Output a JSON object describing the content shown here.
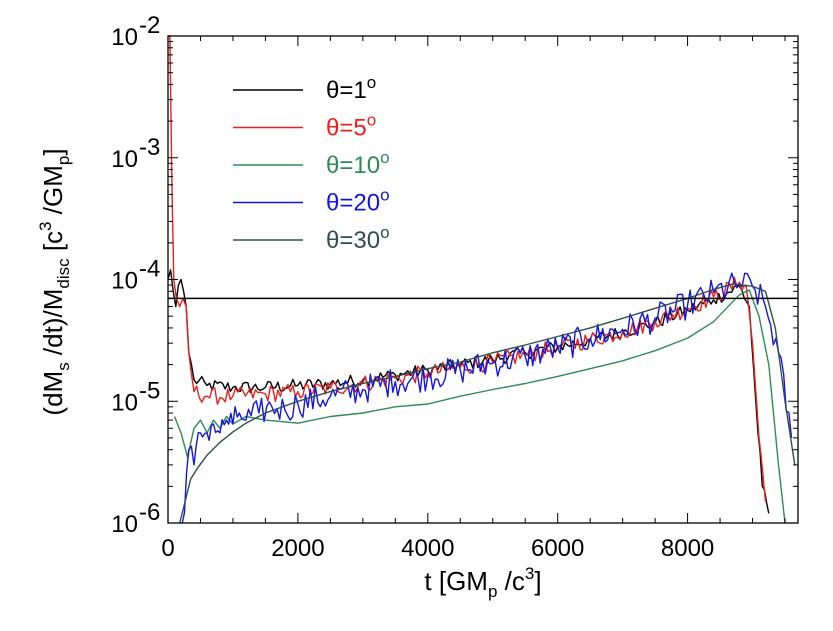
{
  "chart_data": {
    "type": "line",
    "xlabel": {
      "pre": "t [GM",
      "sub": "p",
      "mid": " /c",
      "sup": "3",
      "post": "]"
    },
    "ylabel": {
      "p1": "(dM",
      "s1": "s",
      "p2": " /dt)/M",
      "s2": "disc",
      "p3": " [c",
      "e3": "3",
      "p4": " /GM",
      "s4": "p",
      "p5": "]"
    },
    "xlim": [
      0,
      9700
    ],
    "ylim": [
      1e-06,
      0.01
    ],
    "yscale": "log",
    "xticks": [
      0,
      2000,
      4000,
      6000,
      8000
    ],
    "xtick_labels": [
      "0",
      "2000",
      "4000",
      "6000",
      "8000"
    ],
    "yticks": [
      {
        "base": "10",
        "exp": "-6",
        "value": 1e-06
      },
      {
        "base": "10",
        "exp": "-5",
        "value": 1e-05
      },
      {
        "base": "10",
        "exp": "-4",
        "value": 0.0001
      },
      {
        "base": "10",
        "exp": "-3",
        "value": 0.001
      },
      {
        "base": "10",
        "exp": "-2",
        "value": 0.01
      }
    ],
    "reference_line": {
      "value": 7e-05,
      "color": "#000000"
    },
    "legend": {
      "position": "top-left"
    },
    "series": [
      {
        "name": "θ=1",
        "sup": "o",
        "color": "#000000",
        "x": [
          0,
          40,
          80,
          120,
          160,
          200,
          240,
          280,
          320,
          400,
          600,
          1000,
          1500,
          2000,
          2500,
          3000,
          3500,
          4000,
          4500,
          5000,
          5500,
          6000,
          6500,
          7000,
          7500,
          8000,
          8400,
          8800,
          8950,
          9050,
          9150,
          9250
        ],
        "y": [
          0.0001,
          0.00012,
          8e-05,
          6e-05,
          9e-05,
          0.0001,
          8e-05,
          6e-05,
          2.5e-05,
          1.5e-05,
          1.35e-05,
          1.3e-05,
          1.3e-05,
          1.35e-05,
          1.4e-05,
          1.5e-05,
          1.65e-05,
          1.8e-05,
          2e-05,
          2.2e-05,
          2.5e-05,
          2.8e-05,
          3.2e-05,
          3.7e-05,
          4.4e-05,
          5.6e-05,
          6.8e-05,
          8.8e-05,
          6e-05,
          1e-05,
          2e-06,
          1.2e-06
        ],
        "noise": 0.055
      },
      {
        "name": "θ=5",
        "sup": "o",
        "color": "#e8211d",
        "x": [
          0,
          30,
          60,
          90,
          130,
          180,
          230,
          280,
          320,
          400,
          600,
          1000,
          1500,
          2000,
          2500,
          3000,
          3500,
          4000,
          4500,
          5000,
          5500,
          6000,
          6500,
          7000,
          7500,
          8000,
          8400,
          8800,
          8900,
          9000,
          9100,
          9200
        ],
        "y": [
          0.01,
          0.01,
          0.0006,
          0.0001,
          7e-05,
          6e-05,
          7e-05,
          6e-05,
          2.5e-05,
          1.2e-05,
          1.1e-05,
          1.1e-05,
          1.15e-05,
          1.2e-05,
          1.28e-05,
          1.4e-05,
          1.55e-05,
          1.7e-05,
          1.9e-05,
          2.1e-05,
          2.4e-05,
          2.75e-05,
          3.2e-05,
          3.7e-05,
          4.5e-05,
          5.8e-05,
          7.2e-05,
          9.5e-05,
          9e-05,
          3e-05,
          5e-06,
          1.5e-06
        ],
        "noise": 0.07
      },
      {
        "name": "θ=10",
        "sup": "o",
        "color": "#2e8b57",
        "x": [
          100,
          200,
          300,
          400,
          500,
          600,
          700,
          800,
          900,
          1000,
          1200,
          1500,
          2000,
          2500,
          3000,
          3500,
          4000,
          4500,
          5000,
          5500,
          6000,
          6500,
          7000,
          7500,
          8000,
          8400,
          8800,
          8950,
          9100,
          9250,
          9400,
          9500
        ],
        "y": [
          7.5e-06,
          5.5e-06,
          3.5e-06,
          6e-06,
          7e-06,
          5.5e-06,
          7e-06,
          6e-06,
          7.5e-06,
          6.5e-06,
          7.5e-06,
          7e-06,
          6.6e-06,
          7.5e-06,
          8e-06,
          9e-06,
          9.5e-06,
          1.1e-05,
          1.25e-05,
          1.4e-05,
          1.6e-05,
          1.85e-05,
          2.15e-05,
          2.6e-05,
          3.3e-05,
          4.5e-05,
          7.5e-05,
          8.2e-05,
          5e-05,
          2e-05,
          3e-06,
          1e-06
        ],
        "noise": 0
      },
      {
        "name": "θ=20",
        "sup": "o",
        "color": "#1515e0",
        "x": [
          220,
          320,
          400,
          500,
          600,
          700,
          800,
          900,
          1000,
          1100,
          1200,
          1400,
          1600,
          1800,
          2000,
          2500,
          3000,
          3500,
          4000,
          4500,
          5000,
          5500,
          6000,
          6500,
          7000,
          7500,
          8000,
          8400,
          8800,
          9000,
          9200,
          9400,
          9600
        ],
        "y": [
          1e-06,
          4e-06,
          3e-06,
          5.5e-06,
          5.5e-06,
          6.5e-06,
          5.5e-06,
          7e-06,
          6.5e-06,
          8e-06,
          7e-06,
          8e-06,
          9e-06,
          8.5e-06,
          9.5e-06,
          1.1e-05,
          1.25e-05,
          1.45e-05,
          1.6e-05,
          1.8e-05,
          2.05e-05,
          2.35e-05,
          2.75e-05,
          3.3e-05,
          3.9e-05,
          4.8e-05,
          6.2e-05,
          7.8e-05,
          9.2e-05,
          8.8e-05,
          6e-05,
          2.5e-05,
          5e-06
        ],
        "noise": 0.12
      },
      {
        "name": "θ=30",
        "sup": "o",
        "color": "#2f4f4f",
        "x": [
          180,
          250,
          350,
          450,
          600,
          800,
          1000,
          1200,
          1500,
          2000,
          2500,
          3000,
          3500,
          4000,
          4500,
          5000,
          5500,
          6000,
          6500,
          7000,
          7500,
          8000,
          8400,
          8700,
          9000,
          9200,
          9350,
          9500,
          9650
        ],
        "y": [
          1e-06,
          1.4e-06,
          2.3e-06,
          2.8e-06,
          3.6e-06,
          4.6e-06,
          5.6e-06,
          6.6e-06,
          8e-06,
          1e-05,
          1.2e-05,
          1.4e-05,
          1.6e-05,
          1.85e-05,
          2.1e-05,
          2.5e-05,
          2.9e-05,
          3.4e-05,
          4e-05,
          4.8e-05,
          5.8e-05,
          7e-05,
          8.3e-05,
          9.2e-05,
          8.8e-05,
          8e-05,
          4e-05,
          1e-05,
          3e-06
        ],
        "noise": 0
      }
    ]
  }
}
